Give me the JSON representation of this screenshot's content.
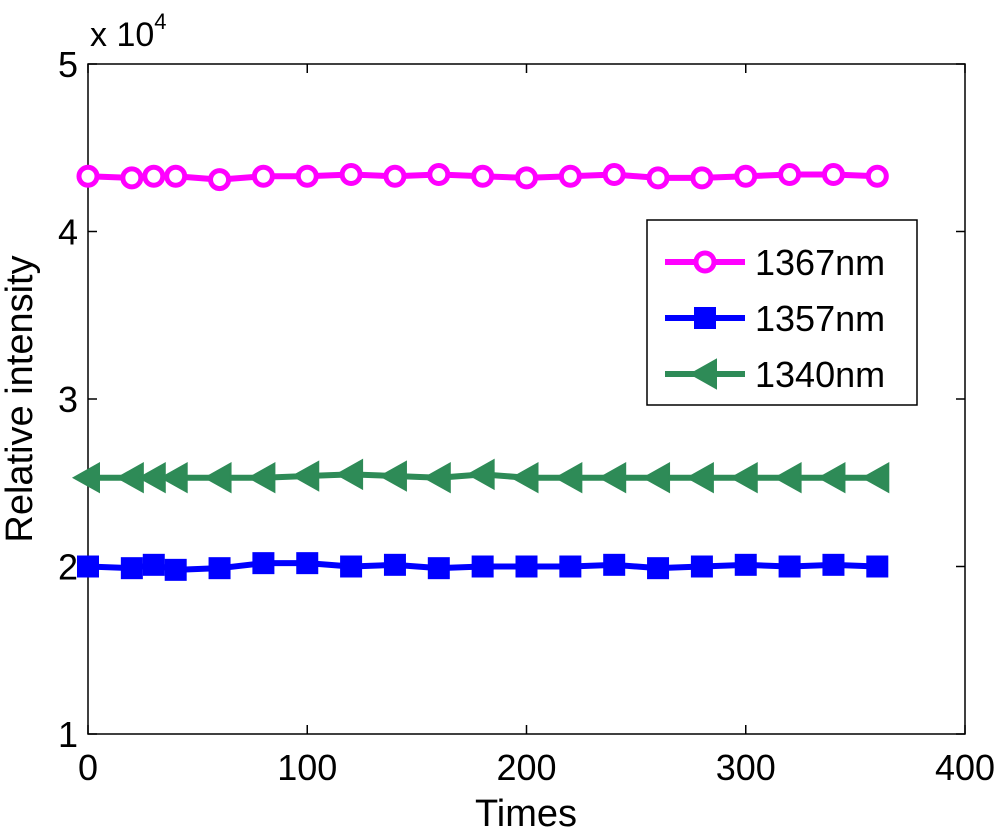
{
  "chart_data": {
    "type": "line",
    "xlabel": "Times",
    "ylabel": "Relative intensity",
    "y_exponent_label": "x 10",
    "y_exponent_power": "4",
    "xlim": [
      0,
      400
    ],
    "ylim": [
      1,
      5
    ],
    "xticks": [
      0,
      100,
      200,
      300,
      400
    ],
    "yticks": [
      1,
      2,
      3,
      4,
      5
    ],
    "ytick_labels": [
      "1",
      "2",
      "3",
      "4",
      "5"
    ],
    "y_scale_factor": 10000,
    "grid": false,
    "legend_position": "top-right",
    "x": [
      0,
      20,
      30,
      40,
      60,
      80,
      100,
      120,
      140,
      160,
      180,
      200,
      220,
      240,
      260,
      280,
      300,
      320,
      340,
      360
    ],
    "series": [
      {
        "name": "1367nm",
        "color": "#ff00ff",
        "marker": "circle",
        "values": [
          43300,
          43200,
          43300,
          43300,
          43100,
          43300,
          43300,
          43400,
          43300,
          43400,
          43300,
          43200,
          43300,
          43400,
          43200,
          43200,
          43300,
          43400,
          43400,
          43300
        ]
      },
      {
        "name": "1357nm",
        "color": "#0000ff",
        "marker": "square",
        "values": [
          20000,
          19900,
          20100,
          19800,
          19900,
          20200,
          20200,
          20000,
          20100,
          19900,
          20000,
          20000,
          20000,
          20100,
          19900,
          20000,
          20100,
          20000,
          20100,
          20000
        ]
      },
      {
        "name": "1340nm",
        "color": "#2e8b57",
        "marker": "triangle-left",
        "values": [
          25300,
          25300,
          25300,
          25300,
          25300,
          25300,
          25400,
          25500,
          25400,
          25300,
          25500,
          25300,
          25300,
          25300,
          25300,
          25300,
          25300,
          25300,
          25300,
          25300
        ]
      }
    ]
  }
}
